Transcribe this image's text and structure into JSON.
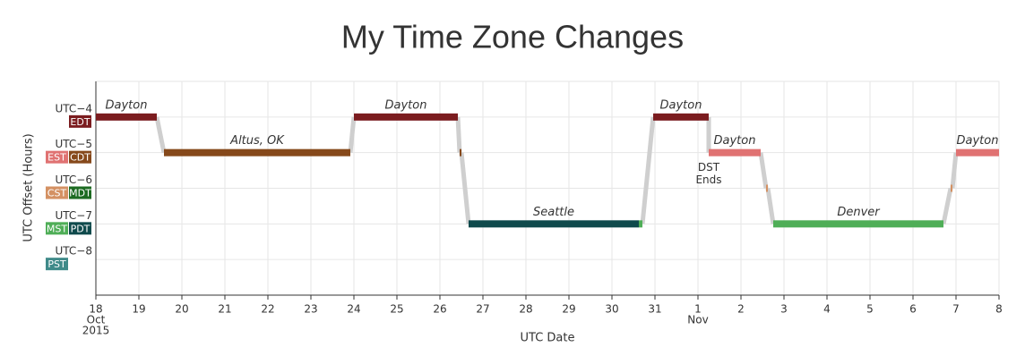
{
  "chart_data": {
    "type": "timezone-timeline",
    "title": "My Time Zone Changes",
    "x_label": "UTC Date",
    "y_label": "UTC Offset (Hours)",
    "xlim": [
      "2015-10-18T00:00",
      "2015-11-08T00:00"
    ],
    "xticks": [
      {
        "value": "2015-10-18",
        "label": "18"
      },
      {
        "value": "2015-10-19",
        "label": "19"
      },
      {
        "value": "2015-10-20",
        "label": "20"
      },
      {
        "value": "2015-10-21",
        "label": "21"
      },
      {
        "value": "2015-10-22",
        "label": "22"
      },
      {
        "value": "2015-10-23",
        "label": "23"
      },
      {
        "value": "2015-10-24",
        "label": "24"
      },
      {
        "value": "2015-10-25",
        "label": "25"
      },
      {
        "value": "2015-10-26",
        "label": "26"
      },
      {
        "value": "2015-10-27",
        "label": "27"
      },
      {
        "value": "2015-10-28",
        "label": "28"
      },
      {
        "value": "2015-10-29",
        "label": "29"
      },
      {
        "value": "2015-10-30",
        "label": "30"
      },
      {
        "value": "2015-10-31",
        "label": "31"
      },
      {
        "value": "2015-11-01",
        "label": "1"
      },
      {
        "value": "2015-11-02",
        "label": "2"
      },
      {
        "value": "2015-11-03",
        "label": "3"
      },
      {
        "value": "2015-11-04",
        "label": "4"
      },
      {
        "value": "2015-11-05",
        "label": "5"
      },
      {
        "value": "2015-11-06",
        "label": "6"
      },
      {
        "value": "2015-11-07",
        "label": "7"
      },
      {
        "value": "2015-11-08",
        "label": "8"
      }
    ],
    "x_sublabels": [
      {
        "value": "2015-10-18",
        "lines": [
          "Oct",
          "2015"
        ]
      },
      {
        "value": "2015-11-01",
        "lines": [
          "Nov"
        ]
      }
    ],
    "ylim": [
      -9,
      -3
    ],
    "yticks": [
      {
        "value": -4,
        "label": "UTC−4"
      },
      {
        "value": -5,
        "label": "UTC−5"
      },
      {
        "value": -6,
        "label": "UTC−6"
      },
      {
        "value": -7,
        "label": "UTC−7"
      },
      {
        "value": -8,
        "label": "UTC−8"
      }
    ],
    "grid": true,
    "zones": [
      {
        "name": "EDT",
        "offset": -4,
        "daylight": true,
        "color": "#7b1c1f"
      },
      {
        "name": "EST",
        "offset": -5,
        "daylight": false,
        "color": "#e07272"
      },
      {
        "name": "CDT",
        "offset": -5,
        "daylight": true,
        "color": "#86491b"
      },
      {
        "name": "CST",
        "offset": -6,
        "daylight": false,
        "color": "#d49163"
      },
      {
        "name": "MDT",
        "offset": -6,
        "daylight": true,
        "color": "#1d6b22"
      },
      {
        "name": "MST",
        "offset": -7,
        "daylight": false,
        "color": "#4fae57"
      },
      {
        "name": "PDT",
        "offset": -7,
        "daylight": true,
        "color": "#0f4a4c"
      },
      {
        "name": "PST",
        "offset": -8,
        "daylight": false,
        "color": "#3f8a89"
      }
    ],
    "segments": [
      {
        "label": "Dayton",
        "zone": "EDT",
        "offset": -4,
        "start": "2015-10-18T00:00",
        "end": "2015-10-19T10:00"
      },
      {
        "label": "Altus, OK",
        "zone": "CDT",
        "offset": -5,
        "start": "2015-10-19T14:00",
        "end": "2015-10-23T22:00"
      },
      {
        "label": "Dayton",
        "zone": "EDT",
        "offset": -4,
        "start": "2015-10-24T00:00",
        "end": "2015-10-26T10:00"
      },
      {
        "zone": "CDT",
        "offset": -5,
        "start": "2015-10-26T11:00",
        "end": "2015-10-26T12:00"
      },
      {
        "label": "Seattle",
        "zone": "PDT",
        "offset": -7,
        "start": "2015-10-26T16:00",
        "end": "2015-10-30T15:00"
      },
      {
        "zone": "MST",
        "offset": -7,
        "start": "2015-10-30T15:00",
        "end": "2015-10-30T17:00"
      },
      {
        "label": "Dayton",
        "zone": "EDT",
        "offset": -4,
        "start": "2015-10-30T23:00",
        "end": "2015-11-01T06:00"
      },
      {
        "label": "Dayton",
        "zone": "EST",
        "offset": -5,
        "start": "2015-11-01T06:00",
        "end": "2015-11-02T11:00"
      },
      {
        "zone": "CST",
        "offset": -6,
        "start": "2015-11-02T14:00",
        "end": "2015-11-02T15:00"
      },
      {
        "label": "Denver",
        "zone": "MST",
        "offset": -7,
        "start": "2015-11-02T18:00",
        "end": "2015-11-06T17:00"
      },
      {
        "zone": "CST",
        "offset": -6,
        "start": "2015-11-06T21:00",
        "end": "2015-11-06T22:00"
      },
      {
        "label": "Dayton",
        "zone": "EST",
        "offset": -5,
        "start": "2015-11-07T00:00",
        "end": "2015-11-08T00:00"
      }
    ],
    "annotations": [
      {
        "x": "2015-11-01T06:00",
        "offset": -5,
        "lines": [
          "DST",
          "Ends"
        ]
      }
    ]
  }
}
